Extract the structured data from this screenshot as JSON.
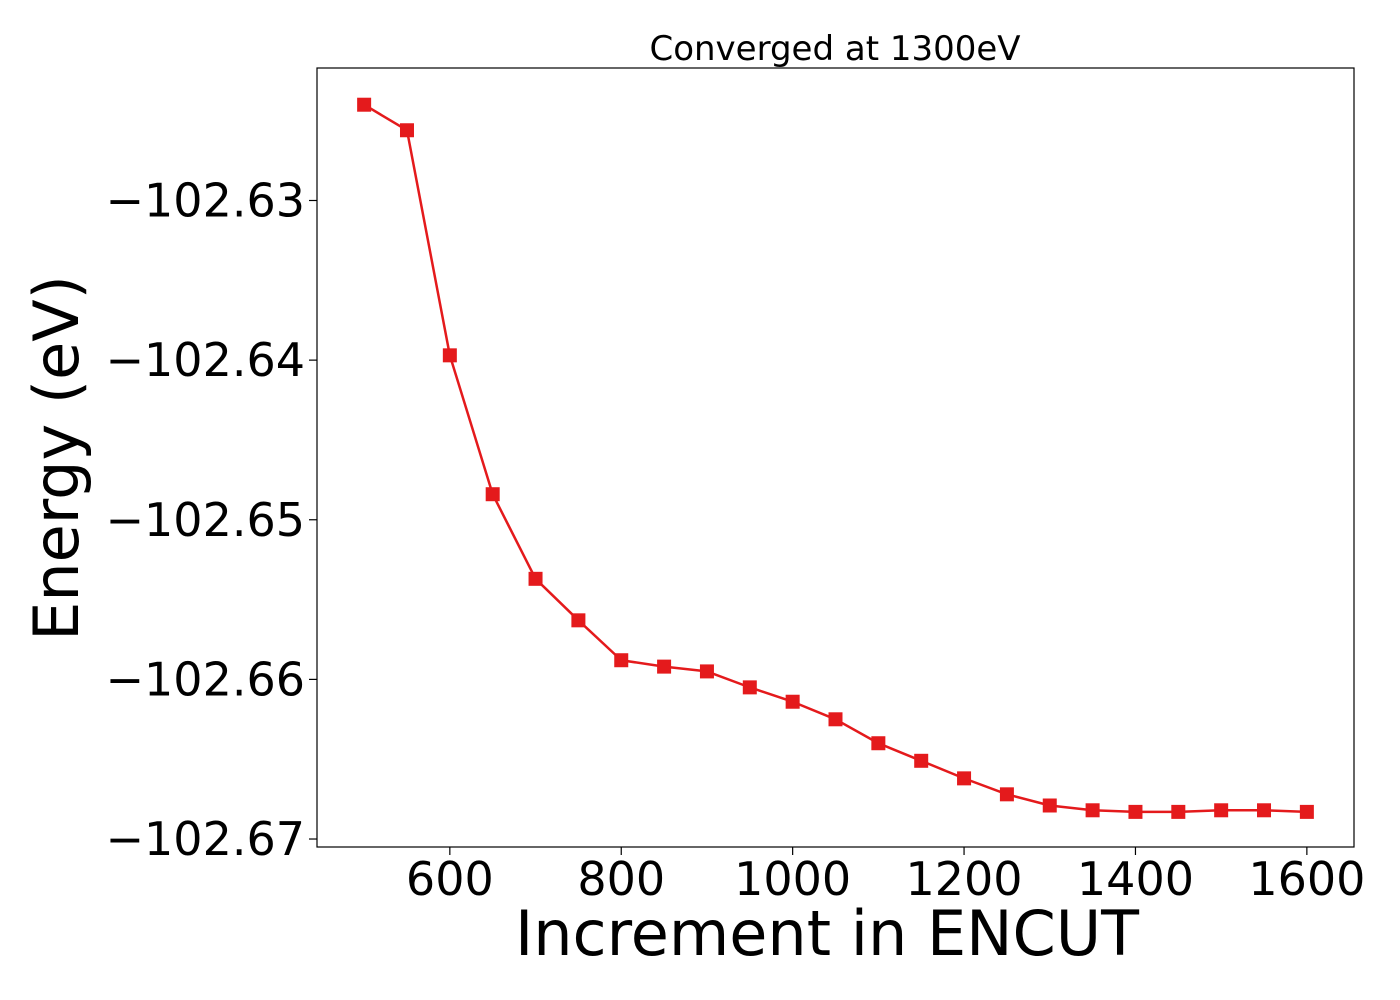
{
  "chart_data": {
    "type": "line",
    "title": "Converged at 1300eV",
    "xlabel": "Increment in ENCUT",
    "ylabel": "Energy (eV)",
    "xlim": [
      445,
      1655
    ],
    "ylim": [
      -102.6705,
      -102.6217
    ],
    "x_ticks": [
      600,
      800,
      1000,
      1200,
      1400,
      1600
    ],
    "x_tick_labels": [
      "600",
      "800",
      "1000",
      "1200",
      "1400",
      "1600"
    ],
    "y_ticks": [
      -102.63,
      -102.64,
      -102.65,
      -102.66,
      -102.67
    ],
    "y_tick_labels": [
      "−102.63",
      "−102.64",
      "−102.65",
      "−102.66",
      "−102.67"
    ],
    "grid": false,
    "series": [
      {
        "color": "#e41a1c",
        "marker": "square",
        "x": [
          500,
          550,
          600,
          650,
          700,
          750,
          800,
          850,
          900,
          950,
          1000,
          1050,
          1100,
          1150,
          1200,
          1250,
          1300,
          1350,
          1400,
          1450,
          1500,
          1550,
          1600
        ],
        "y": [
          -102.624,
          -102.6256,
          -102.6397,
          -102.6484,
          -102.6537,
          -102.6563,
          -102.6588,
          -102.6592,
          -102.6595,
          -102.6605,
          -102.6614,
          -102.6625,
          -102.664,
          -102.6651,
          -102.6662,
          -102.6672,
          -102.6679,
          -102.6682,
          -102.6683,
          -102.6683,
          -102.6682,
          -102.6682,
          -102.6683
        ]
      }
    ]
  }
}
